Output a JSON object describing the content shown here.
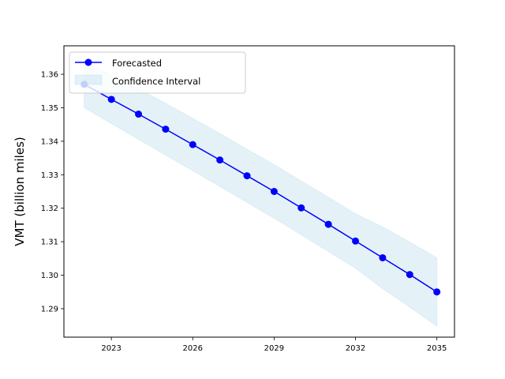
{
  "chart_data": {
    "type": "line",
    "title": "",
    "xlabel": "",
    "ylabel": "VMT (billion miles)",
    "x": [
      2022,
      2023,
      2024,
      2025,
      2026,
      2027,
      2028,
      2029,
      2030,
      2031,
      2032,
      2033,
      2034,
      2035
    ],
    "xlim": [
      2021.25,
      2035.65
    ],
    "ylim": [
      1.2815,
      1.3685
    ],
    "xticks": [
      2023,
      2026,
      2029,
      2032,
      2035
    ],
    "xtick_labels": [
      "2023",
      "2026",
      "2029",
      "2032",
      "2035"
    ],
    "yticks": [
      1.29,
      1.3,
      1.31,
      1.32,
      1.33,
      1.34,
      1.35,
      1.36
    ],
    "ytick_labels": [
      "1.29",
      "1.30",
      "1.31",
      "1.32",
      "1.33",
      "1.34",
      "1.35",
      "1.36"
    ],
    "grid": false,
    "legend_position": "top-left",
    "series": [
      {
        "name": "Forecasted",
        "color": "#0000ff",
        "marker": "circle",
        "values": [
          1.357,
          1.3525,
          1.3481,
          1.3436,
          1.339,
          1.3344,
          1.3297,
          1.325,
          1.3201,
          1.3152,
          1.3102,
          1.3052,
          1.3002,
          1.295
        ]
      }
    ],
    "band": {
      "name": "Confidence Interval",
      "color": "#add8e6",
      "lower": [
        1.35,
        1.3453,
        1.3406,
        1.3359,
        1.3312,
        1.3265,
        1.3218,
        1.317,
        1.3121,
        1.3071,
        1.3021,
        1.296,
        1.2905,
        1.2848
      ],
      "upper": [
        1.364,
        1.3597,
        1.3556,
        1.3513,
        1.3468,
        1.3423,
        1.3376,
        1.333,
        1.3281,
        1.3233,
        1.3183,
        1.3144,
        1.3099,
        1.3052
      ]
    }
  }
}
